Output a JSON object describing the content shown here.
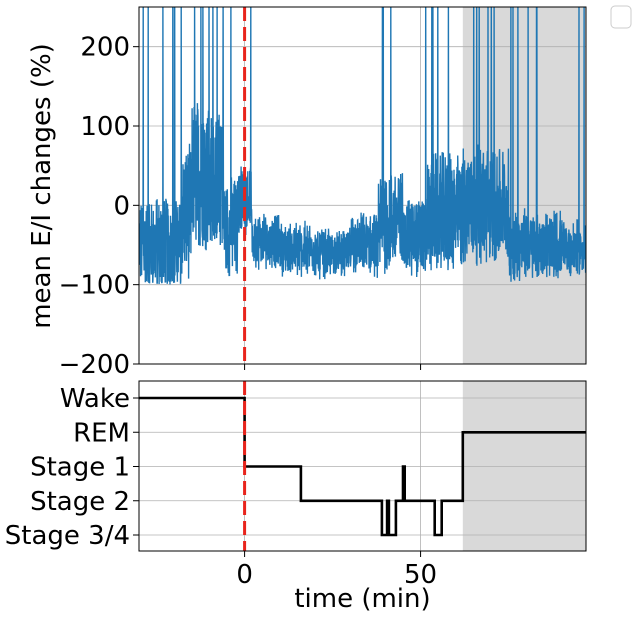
{
  "chart_data": [
    {
      "type": "line",
      "ylabel": "mean E/I changes (%)",
      "xlabel": "",
      "xlim": [
        -30,
        97
      ],
      "ylim": [
        -200,
        250
      ],
      "yticks": [
        -200,
        -100,
        0,
        100,
        200
      ],
      "ytick_labels": [
        "−200",
        "−100",
        "0",
        "100",
        "200"
      ],
      "xticks": [
        0,
        50
      ],
      "grid": true,
      "shaded_region": [
        62,
        97
      ],
      "vline": {
        "x": 0,
        "style": "dashed",
        "color": "#e8241c"
      },
      "series": [
        {
          "color": "#1f77b4",
          "segments": [
            {
              "x": [
                -30,
                -26
              ],
              "center": -50,
              "spread": 50,
              "spikes": 2
            },
            {
              "x": [
                -26,
                -18
              ],
              "center": -50,
              "spread": 55,
              "spikes": 4
            },
            {
              "x": [
                -18,
                -15
              ],
              "center": -10,
              "spread": 80,
              "spikes": 1
            },
            {
              "x": [
                -15,
                -10
              ],
              "center": 40,
              "spread": 90,
              "spikes": 4
            },
            {
              "x": [
                -10,
                -6
              ],
              "center": 30,
              "spread": 80,
              "spikes": 3
            },
            {
              "x": [
                -6,
                -2
              ],
              "center": -30,
              "spread": 60,
              "spikes": 1
            },
            {
              "x": [
                -2,
                2
              ],
              "center": 10,
              "spread": 40,
              "spikes": 1
            },
            {
              "x": [
                2,
                10
              ],
              "center": -45,
              "spread": 30,
              "spikes": 0
            },
            {
              "x": [
                10,
                20
              ],
              "center": -55,
              "spread": 28,
              "spikes": 0
            },
            {
              "x": [
                20,
                30
              ],
              "center": -60,
              "spread": 25,
              "spikes": 0
            },
            {
              "x": [
                30,
                38
              ],
              "center": -50,
              "spread": 35,
              "spikes": 0
            },
            {
              "x": [
                38,
                45
              ],
              "center": -20,
              "spread": 60,
              "spikes": 3
            },
            {
              "x": [
                45,
                52
              ],
              "center": -40,
              "spread": 45,
              "spikes": 1
            },
            {
              "x": [
                52,
                62
              ],
              "center": -10,
              "spread": 70,
              "spikes": 4
            },
            {
              "x": [
                62,
                75
              ],
              "center": 0,
              "spread": 70,
              "spikes": 6
            },
            {
              "x": [
                75,
                90
              ],
              "center": -50,
              "spread": 40,
              "spikes": 6
            },
            {
              "x": [
                90,
                97
              ],
              "center": -55,
              "spread": 30,
              "spikes": 2
            }
          ]
        }
      ]
    },
    {
      "type": "line",
      "xlabel": "time (min)",
      "ylabel": "",
      "xlim": [
        -30,
        97
      ],
      "xticks": [
        0,
        50
      ],
      "xtick_labels": [
        "0",
        "50"
      ],
      "categories": [
        "Wake",
        "REM",
        "Stage 1",
        "Stage 2",
        "Stage 3/4"
      ],
      "grid": true,
      "shaded_region": [
        62,
        97
      ],
      "vline": {
        "x": 0,
        "style": "dashed",
        "color": "#e8241c"
      },
      "series": [
        {
          "color": "#000000",
          "x": [
            -30,
            0,
            0,
            0,
            0,
            16,
            16,
            39,
            39,
            40.5,
            40.5,
            41,
            41,
            43,
            43,
            45,
            45,
            45.5,
            45.5,
            54,
            54,
            56,
            56,
            62,
            62,
            97
          ],
          "y": [
            "Wake",
            "Wake",
            "REM",
            "Wake",
            "Stage 1",
            "Stage 1",
            "Stage 2",
            "Stage 2",
            "Stage 3/4",
            "Stage 3/4",
            "Stage 2",
            "Stage 2",
            "Stage 3/4",
            "Stage 3/4",
            "Stage 2",
            "Stage 2",
            "Stage 1",
            "Stage 1",
            "Stage 2",
            "Stage 2",
            "Stage 3/4",
            "Stage 3/4",
            "Stage 2",
            "Stage 2",
            "REM",
            "REM"
          ]
        }
      ]
    }
  ],
  "legend": {
    "entries": []
  }
}
